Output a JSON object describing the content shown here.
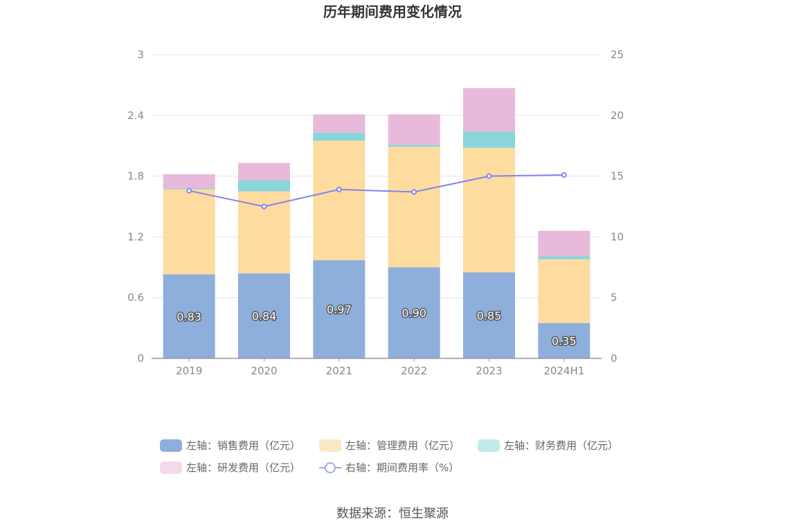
{
  "chart_data": {
    "type": "bar",
    "title": "历年期间费用变化情况",
    "categories": [
      "2019",
      "2020",
      "2021",
      "2022",
      "2023",
      "2024H1"
    ],
    "series": [
      {
        "name": "左轴：销售费用（亿元）",
        "axis": "left",
        "color": "#8eaedc",
        "values": [
          0.83,
          0.84,
          0.97,
          0.9,
          0.85,
          0.35
        ],
        "labels": [
          "0.83",
          "0.84",
          "0.97",
          "0.90",
          "0.85",
          "0.35"
        ]
      },
      {
        "name": "左轴：管理费用（亿元）",
        "axis": "left",
        "color": "#fedb9f",
        "values": [
          0.84,
          0.81,
          1.18,
          1.19,
          1.23,
          0.63
        ]
      },
      {
        "name": "左轴：财务费用（亿元）",
        "axis": "left",
        "color": "#88d5da",
        "values": [
          0.01,
          0.11,
          0.08,
          0.02,
          0.16,
          0.03
        ]
      },
      {
        "name": "左轴：研发费用（亿元）",
        "axis": "left",
        "color": "#e8b9da",
        "values": [
          0.14,
          0.17,
          0.18,
          0.3,
          0.43,
          0.25
        ]
      },
      {
        "name": "右轴：期间费用率（%）",
        "axis": "right",
        "type": "line",
        "color": "#7f84ee",
        "values": [
          13.8,
          12.5,
          13.9,
          13.7,
          15.0,
          15.1
        ]
      }
    ],
    "left_axis": {
      "min": 0,
      "max": 3,
      "ticks": [
        "0",
        "0.6",
        "1.2",
        "1.8",
        "2.4",
        "3"
      ]
    },
    "right_axis": {
      "min": 0,
      "max": 25,
      "ticks": [
        "0",
        "5",
        "10",
        "15",
        "20",
        "25"
      ]
    },
    "legend_position": "bottom",
    "grid": true
  },
  "legend_colors": [
    "#8eaedc",
    "#fde8c6",
    "#c2eaeb",
    "#f4d9ea",
    "#a5a8f0"
  ],
  "source": "数据来源：恒生聚源"
}
